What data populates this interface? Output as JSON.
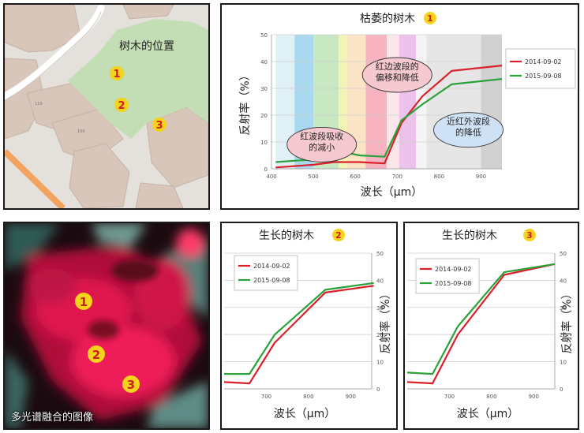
{
  "map": {
    "label": "树木的位置",
    "markers": [
      "1",
      "2",
      "3"
    ],
    "building_numbers": [
      "110",
      "100"
    ]
  },
  "fused_image": {
    "caption": "多光谱融合的图像",
    "markers": [
      "1",
      "2",
      "3"
    ]
  },
  "colors": {
    "series_2014": "#d9202b",
    "series_2015": "#2aa23a",
    "marker_fill": "#f4d31c",
    "marker_text": "#d11f1f",
    "park": "#c3deb4",
    "bubble_pink": "#f5c9cf",
    "bubble_blue": "#cfe2f5"
  },
  "chart_data": [
    {
      "type": "line",
      "title": "枯萎的树木",
      "title_badge": "1",
      "xlabel": "波长（μm）",
      "ylabel": "反射率（%）",
      "xlim": [
        400,
        950
      ],
      "ylim": [
        0,
        50
      ],
      "x_ticks": [
        "400",
        "500",
        "600",
        "700",
        "800",
        "900"
      ],
      "y_ticks": [
        "0",
        "10",
        "20",
        "30",
        "40",
        "50"
      ],
      "y_axis_side": "left",
      "grid": true,
      "legend": "right",
      "bands": [
        {
          "from": 410,
          "to": 455,
          "color": "#dff1f7"
        },
        {
          "from": 455,
          "to": 500,
          "color": "#a8d9ef"
        },
        {
          "from": 500,
          "to": 560,
          "color": "#c8e8c3"
        },
        {
          "from": 560,
          "to": 580,
          "color": "#f0f4b4"
        },
        {
          "from": 580,
          "to": 625,
          "color": "#fbe4c6"
        },
        {
          "from": 625,
          "to": 675,
          "color": "#f7b3bf"
        },
        {
          "from": 675,
          "to": 705,
          "color": "#fbe6ea"
        },
        {
          "from": 705,
          "to": 745,
          "color": "#ecc2ea"
        },
        {
          "from": 745,
          "to": 770,
          "color": "#f5f5f5"
        },
        {
          "from": 770,
          "to": 900,
          "color": "#e6e6e6"
        },
        {
          "from": 900,
          "to": 950,
          "color": "#d1d1d1"
        }
      ],
      "series": [
        {
          "name": "2014-09-02",
          "color": "#d9202b",
          "x": [
            410,
            500,
            550,
            610,
            670,
            710,
            760,
            830,
            950
          ],
          "y": [
            0.5,
            1.5,
            2.5,
            2.5,
            2,
            17,
            27,
            36.5,
            38.5
          ]
        },
        {
          "name": "2015-09-08",
          "color": "#2aa23a",
          "x": [
            410,
            500,
            550,
            610,
            670,
            710,
            760,
            830,
            950
          ],
          "y": [
            2.5,
            3.5,
            7,
            5,
            4.5,
            18,
            24,
            31.5,
            33.5
          ]
        }
      ],
      "annotations": [
        {
          "text": [
            "红边波段的",
            "偏移和降低"
          ],
          "x": 700,
          "y": 35,
          "style": "pink"
        },
        {
          "text": [
            "红波段吸收",
            "的减小"
          ],
          "x": 520,
          "y": 9,
          "style": "pink"
        },
        {
          "text": [
            "近红外波段",
            "的降低"
          ],
          "x": 870,
          "y": 14.5,
          "style": "blue"
        }
      ]
    },
    {
      "type": "line",
      "title": "生长的树木",
      "title_badge": "2",
      "xlabel": "波长（μm）",
      "ylabel": "反射率（%）",
      "xlim": [
        600,
        950
      ],
      "ylim": [
        0,
        50
      ],
      "x_ticks": [
        "700",
        "800",
        "900"
      ],
      "y_ticks": [
        "0",
        "10",
        "20",
        "30",
        "40",
        "50"
      ],
      "y_axis_side": "right",
      "grid": true,
      "legend": "top-left",
      "series": [
        {
          "name": "2014-09-02",
          "color": "#d9202b",
          "x": [
            600,
            660,
            720,
            840,
            955
          ],
          "y": [
            2.5,
            2,
            17,
            35.5,
            38
          ]
        },
        {
          "name": "2015-09-08",
          "color": "#2aa23a",
          "x": [
            600,
            660,
            720,
            840,
            955
          ],
          "y": [
            5.5,
            5.5,
            20,
            36.5,
            39
          ]
        }
      ]
    },
    {
      "type": "line",
      "title": "生长的树木",
      "title_badge": "3",
      "xlabel": "波长（μm）",
      "ylabel": "反射率（%）",
      "xlim": [
        600,
        950
      ],
      "ylim": [
        0,
        50
      ],
      "x_ticks": [
        "700",
        "800",
        "900"
      ],
      "y_ticks": [
        "0",
        "10",
        "20",
        "30",
        "40",
        "50"
      ],
      "y_axis_side": "right",
      "grid": true,
      "legend": "top-left",
      "series": [
        {
          "name": "2014-09-02",
          "color": "#d9202b",
          "x": [
            600,
            660,
            720,
            830,
            950
          ],
          "y": [
            2.5,
            2,
            20,
            42,
            46
          ]
        },
        {
          "name": "2015-09-08",
          "color": "#2aa23a",
          "x": [
            600,
            660,
            720,
            830,
            950
          ],
          "y": [
            6,
            5.5,
            23,
            43,
            46
          ]
        }
      ]
    }
  ]
}
